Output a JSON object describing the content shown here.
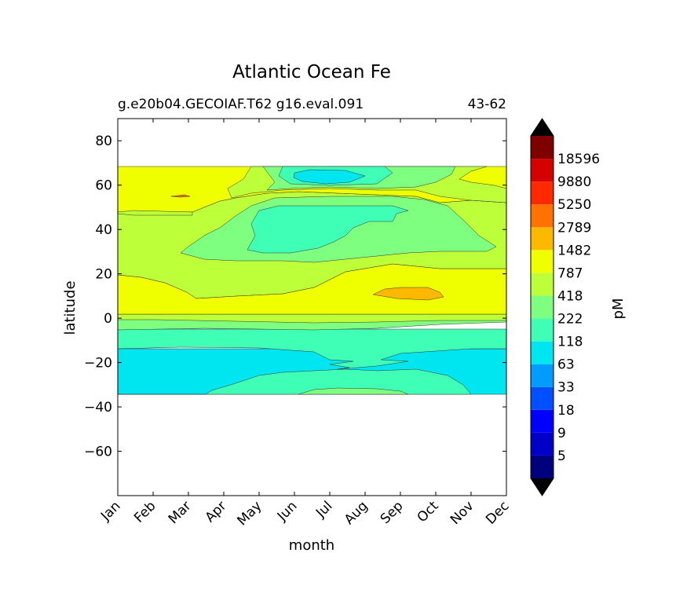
{
  "chart_data": {
    "type": "contour",
    "title": "Atlantic Ocean Fe",
    "subtitle_left": "g.e20b04.GECOIAF.T62 g16.eval.091",
    "subtitle_right": "43-62",
    "xlabel": "month",
    "ylabel": "latitude",
    "x_ticks": [
      "Jan",
      "Feb",
      "Mar",
      "Apr",
      "May",
      "Jun",
      "Jul",
      "Aug",
      "Sep",
      "Oct",
      "Nov",
      "Dec"
    ],
    "y_ticks": [
      "80",
      "60",
      "40",
      "20",
      "0",
      "−20",
      "−40",
      "−60"
    ],
    "ylim": [
      -80,
      90
    ],
    "data_lat_range": [
      -34,
      69
    ],
    "colorbar": {
      "label": "pM",
      "extend": "both",
      "levels": [
        5,
        9,
        18,
        33,
        63,
        118,
        222,
        418,
        787,
        1482,
        2789,
        5250,
        9880,
        18596
      ],
      "tick_labels": [
        "5",
        "9",
        "18",
        "33",
        "63",
        "118",
        "222",
        "418",
        "787",
        "1482",
        "2789",
        "5250",
        "9880",
        "18596"
      ],
      "under_color": "#000000",
      "over_color": "#000000",
      "band_colors": [
        "#00007f",
        "#0000c8",
        "#0000ff",
        "#0050ff",
        "#009cff",
        "#00e6f0",
        "#3fffb7",
        "#7fff7f",
        "#bdff39",
        "#f0ff00",
        "#ffb800",
        "#ff7100",
        "#ff2900",
        "#d50000",
        "#7f0000"
      ]
    },
    "description_bands": [
      {
        "lat_from": 48,
        "lat_to": 69,
        "level": "787-1482"
      },
      {
        "lat_from": 20,
        "lat_to": 48,
        "level": "418-787"
      },
      {
        "lat_from": 2,
        "lat_to": 20,
        "level": "787-1482"
      },
      {
        "lat_from": -5,
        "lat_to": 2,
        "level": "418-787"
      },
      {
        "lat_from": -13,
        "lat_to": -5,
        "level": "118-222"
      },
      {
        "lat_from": -34,
        "lat_to": -13,
        "level": "63-118"
      }
    ]
  }
}
